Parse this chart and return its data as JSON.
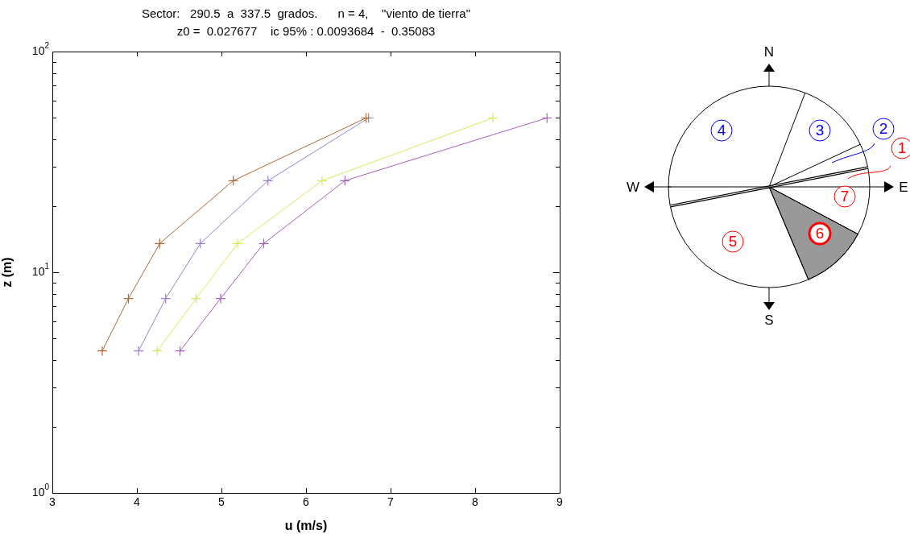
{
  "chart_data": {
    "type": "line",
    "title": "Sector:   290.5  a  337.5  grados.      n = 4,    \"viento de tierra\"",
    "subtitle": "z0 =  0.027677    ic 95% : 0.0093684  -  0.35083",
    "xlabel": "u (m/s)",
    "ylabel": "z (m)",
    "log": "y",
    "marker": "cross",
    "line_style": "solid",
    "xlim": [
      3,
      9
    ],
    "xticks": [
      3,
      4,
      5,
      6,
      7,
      8,
      9
    ],
    "ylim": [
      1,
      100
    ],
    "yticks": [
      {
        "value": 1,
        "label": "10$^{0}$"
      },
      {
        "value": 2,
        "label": null
      },
      {
        "value": 3,
        "label": null
      },
      {
        "value": 4,
        "label": null
      },
      {
        "value": 5,
        "label": null
      },
      {
        "value": 6,
        "label": null
      },
      {
        "value": 7,
        "label": null
      },
      {
        "value": 8,
        "label": null
      },
      {
        "value": 9,
        "label": null
      },
      {
        "value": 10,
        "label": "10$^{1}$"
      },
      {
        "value": 20,
        "label": null
      },
      {
        "value": 30,
        "label": null
      },
      {
        "value": 40,
        "label": null
      },
      {
        "value": 50,
        "label": null
      },
      {
        "value": 60,
        "label": null
      },
      {
        "value": 70,
        "label": null
      },
      {
        "value": 80,
        "label": null
      },
      {
        "value": 90,
        "label": null
      },
      {
        "value": 100,
        "label": "10$^{2}$"
      }
    ],
    "series": [
      {
        "color": "#b0683a",
        "x": [
          3.59,
          3.9,
          4.27,
          5.14,
          6.71
        ],
        "values": [
          4.4,
          7.6,
          13.5,
          26,
          50
        ]
      },
      {
        "color": "#9d7fd0",
        "x": [
          4.02,
          4.34,
          4.75,
          5.55,
          6.74
        ],
        "values": [
          4.4,
          7.6,
          13.5,
          26,
          50
        ]
      },
      {
        "color": "#d4ec5a",
        "x": [
          4.24,
          4.7,
          5.19,
          6.19,
          8.21
        ],
        "values": [
          4.4,
          7.6,
          13.5,
          26,
          50
        ]
      },
      {
        "color": "#a860c0",
        "x": [
          4.51,
          4.99,
          5.5,
          6.46,
          8.85
        ],
        "values": [
          4.4,
          7.6,
          13.5,
          26,
          50
        ]
      }
    ],
    "annotations": [
      "N",
      "E",
      "S",
      "W",
      "1",
      "2",
      "3",
      "4",
      "5",
      "6",
      "7"
    ]
  }
}
